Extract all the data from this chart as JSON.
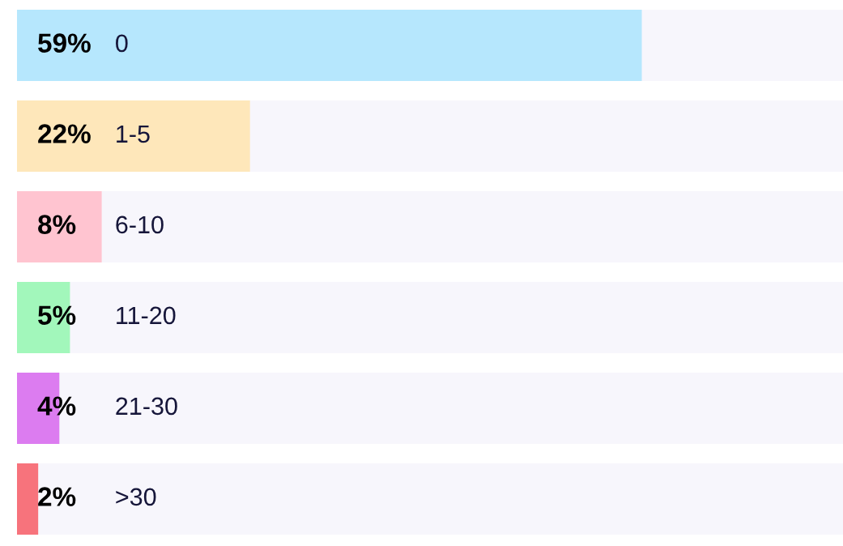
{
  "chart_data": {
    "type": "bar",
    "orientation": "horizontal",
    "categories": [
      "0",
      "1-5",
      "6-10",
      "11-20",
      "21-30",
      ">30"
    ],
    "values": [
      59,
      22,
      8,
      5,
      4,
      2
    ],
    "value_labels": [
      "59%",
      "22%",
      "8%",
      "5%",
      "4%",
      "2%"
    ],
    "colors": [
      "#b6e7fd",
      "#fee7ba",
      "#ffc4d0",
      "#a2f7bb",
      "#dc7cf0",
      "#f7737c"
    ],
    "xlim": [
      0,
      78
    ],
    "tick_labels": false
  }
}
